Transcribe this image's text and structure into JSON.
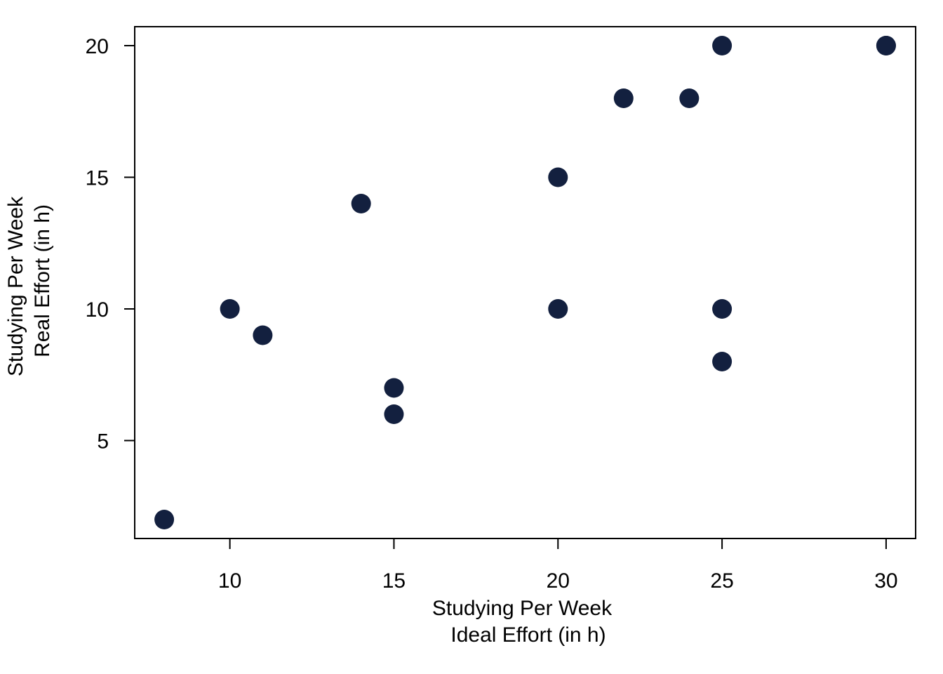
{
  "chart_data": {
    "type": "scatter",
    "title": "",
    "xlabel": [
      "Studying Per Week",
      "Ideal Effort (in h)"
    ],
    "ylabel": [
      "Studying Per Week",
      "Real Effort (in h)"
    ],
    "xlim": [
      7.1,
      30.9
    ],
    "ylim": [
      1.28,
      20.72
    ],
    "xticks": [
      10,
      15,
      20,
      25,
      30
    ],
    "yticks": [
      5,
      10,
      15,
      20
    ],
    "grid": false,
    "legend": "none",
    "marker_color": "#13203f",
    "points": [
      {
        "x": 8,
        "y": 2
      },
      {
        "x": 10,
        "y": 10
      },
      {
        "x": 11,
        "y": 9
      },
      {
        "x": 14,
        "y": 14
      },
      {
        "x": 15,
        "y": 7
      },
      {
        "x": 15,
        "y": 6
      },
      {
        "x": 20,
        "y": 15
      },
      {
        "x": 20,
        "y": 10
      },
      {
        "x": 22,
        "y": 18
      },
      {
        "x": 24,
        "y": 18
      },
      {
        "x": 25,
        "y": 20
      },
      {
        "x": 25,
        "y": 10
      },
      {
        "x": 25,
        "y": 8
      },
      {
        "x": 30,
        "y": 20
      },
      {
        "x": 30,
        "y": 20
      }
    ]
  }
}
